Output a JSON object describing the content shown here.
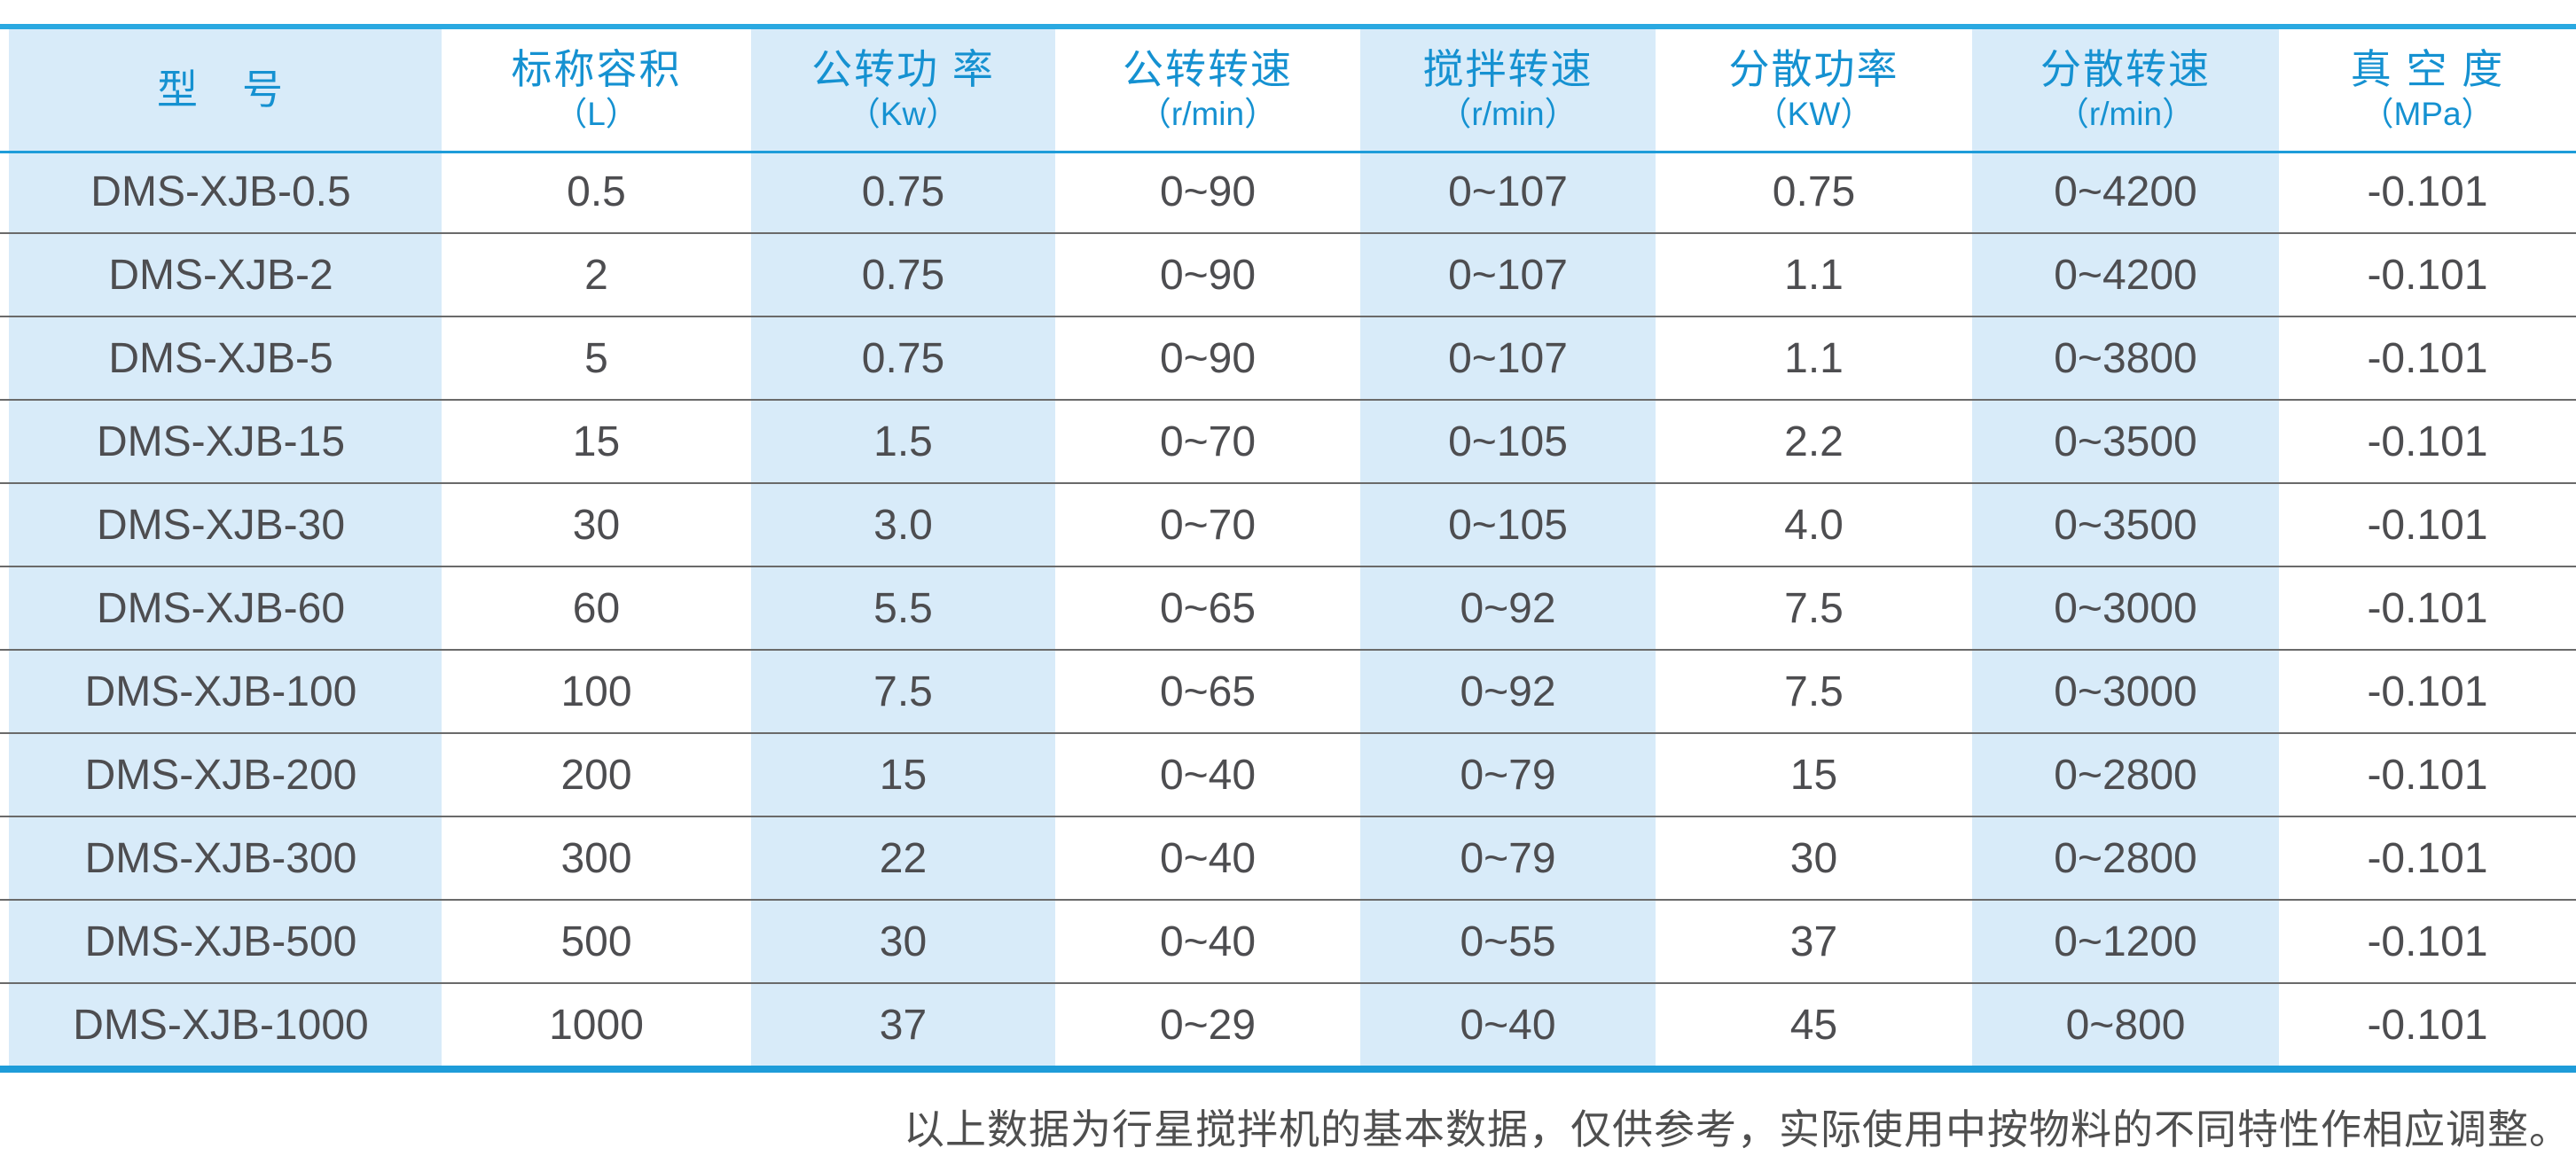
{
  "table": {
    "columns": [
      {
        "title": "型　号",
        "unit": ""
      },
      {
        "title": "标称容积",
        "unit": "（L）"
      },
      {
        "title": "公转功 率",
        "unit": "（Kw）"
      },
      {
        "title": "公转转速",
        "unit": "（r/min）"
      },
      {
        "title": "搅拌转速",
        "unit": "（r/min）"
      },
      {
        "title": "分散功率",
        "unit": "（KW）"
      },
      {
        "title": "分散转速",
        "unit": "（r/min）"
      },
      {
        "title": "真 空 度",
        "unit": "（MPa）"
      }
    ],
    "rows": [
      [
        "DMS-XJB-0.5",
        "0.5",
        "0.75",
        "0~90",
        "0~107",
        "0.75",
        "0~4200",
        "-0.101"
      ],
      [
        "DMS-XJB-2",
        "2",
        "0.75",
        "0~90",
        "0~107",
        "1.1",
        "0~4200",
        "-0.101"
      ],
      [
        "DMS-XJB-5",
        "5",
        "0.75",
        "0~90",
        "0~107",
        "1.1",
        "0~3800",
        "-0.101"
      ],
      [
        "DMS-XJB-15",
        "15",
        "1.5",
        "0~70",
        "0~105",
        "2.2",
        "0~3500",
        "-0.101"
      ],
      [
        "DMS-XJB-30",
        "30",
        "3.0",
        "0~70",
        "0~105",
        "4.0",
        "0~3500",
        "-0.101"
      ],
      [
        "DMS-XJB-60",
        "60",
        "5.5",
        "0~65",
        "0~92",
        "7.5",
        "0~3000",
        "-0.101"
      ],
      [
        "DMS-XJB-100",
        "100",
        "7.5",
        "0~65",
        "0~92",
        "7.5",
        "0~3000",
        "-0.101"
      ],
      [
        "DMS-XJB-200",
        "200",
        "15",
        "0~40",
        "0~79",
        "15",
        "0~2800",
        "-0.101"
      ],
      [
        "DMS-XJB-300",
        "300",
        "22",
        "0~40",
        "0~79",
        "30",
        "0~2800",
        "-0.101"
      ],
      [
        "DMS-XJB-500",
        "500",
        "30",
        "0~40",
        "0~55",
        "37",
        "0~1200",
        "-0.101"
      ],
      [
        "DMS-XJB-1000",
        "1000",
        "37",
        "0~29",
        "0~40",
        "45",
        "0~800",
        "-0.101"
      ]
    ]
  },
  "footnote": "以上数据为行星搅拌机的基本数据，仅供参考，实际使用中按物料的不同特性作相应调整。",
  "colors": {
    "top_border": "#2AA9E1",
    "bottom_border": "#1E9CD9",
    "header_text": "#1591D1",
    "stripe_background": "#D8EBF9",
    "body_text": "#4D4D50",
    "row_line": "#6A6A6A"
  }
}
